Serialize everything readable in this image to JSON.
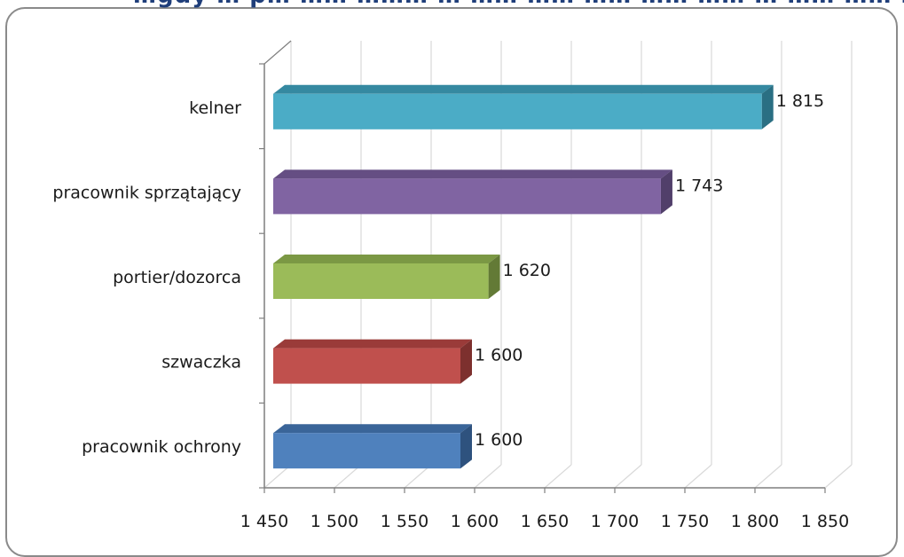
{
  "chart_data": {
    "type": "bar",
    "orientation": "horizontal",
    "title": "",
    "xlabel": "",
    "ylabel": "",
    "categories": [
      "pracownik ochrony",
      "szwaczka",
      "portier/dozorca",
      "pracownik sprzątający",
      "kelner"
    ],
    "values": [
      1600,
      1600,
      1620,
      1743,
      1815
    ],
    "value_labels": [
      "1 600",
      "1 600",
      "1 620",
      "1 743",
      "1 815"
    ],
    "xlim": [
      1450,
      1850
    ],
    "ticks": [
      1450,
      1500,
      1550,
      1600,
      1650,
      1700,
      1750,
      1800,
      1850
    ],
    "tick_labels": [
      "1 450",
      "1 500",
      "1 550",
      "1 600",
      "1 650",
      "1 700",
      "1 750",
      "1 800",
      "1 850"
    ],
    "grid": true,
    "style": "3d",
    "colors": {
      "pracownik ochrony": {
        "front": "#4f81bd",
        "top": "#3a6599",
        "side": "#2e527e"
      },
      "szwaczka": {
        "front": "#c0504d",
        "top": "#9a3b39",
        "side": "#7d302e"
      },
      "portier/dozorca": {
        "front": "#9bbb59",
        "top": "#7b9844",
        "side": "#637a36"
      },
      "pracownik sprzątający": {
        "front": "#8064a2",
        "top": "#654e83",
        "side": "#513f6a"
      },
      "kelner": {
        "front": "#4bacc6",
        "top": "#3589a1",
        "side": "#2a6f83"
      }
    },
    "grid_color": "#d9d9d9",
    "axis_color": "#7f7f7f"
  }
}
